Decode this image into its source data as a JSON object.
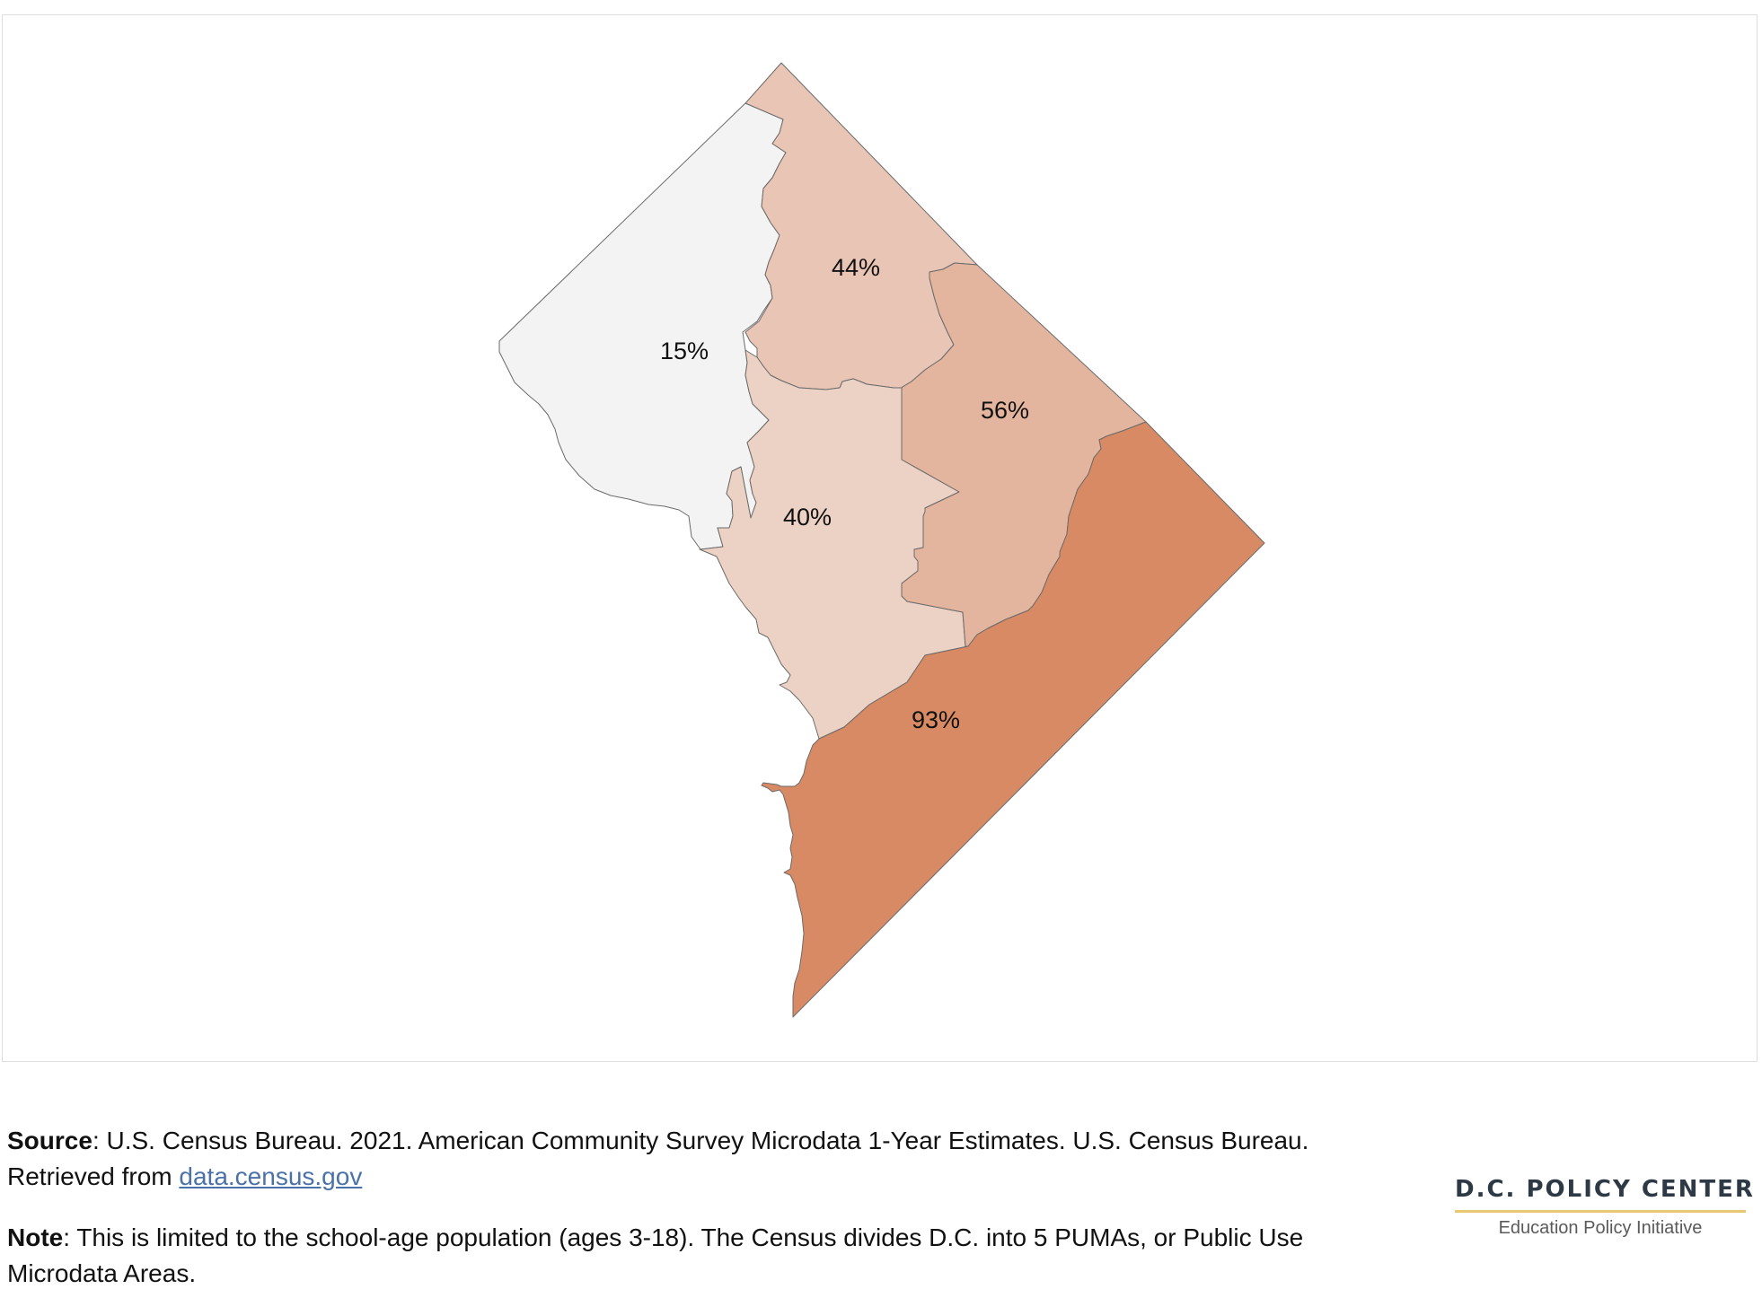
{
  "map": {
    "regions": [
      {
        "id": "puma-northwest",
        "label": "15%",
        "value": 15,
        "fill": "#f3f3f3"
      },
      {
        "id": "puma-north-central",
        "label": "44%",
        "value": 44,
        "fill": "#e8c5b5"
      },
      {
        "id": "puma-central",
        "label": "40%",
        "value": 40,
        "fill": "#ecd2c4"
      },
      {
        "id": "puma-northeast",
        "label": "56%",
        "value": 56,
        "fill": "#e4b59e"
      },
      {
        "id": "puma-east-of-river",
        "label": "93%",
        "value": 93,
        "fill": "#d78a63"
      }
    ],
    "border_color": "#6b6b6b"
  },
  "footer": {
    "source_key": "Source",
    "source_text": ": U.S. Census Bureau. 2021. American Community Survey Microdata 1-Year Estimates. U.S. Census Bureau. Retrieved from ",
    "source_link": "data.census.gov",
    "note_key": "Note",
    "note_text": ": This is limited to the school-age population (ages 3-18). The Census divides D.C. into 5 PUMAs, or Public Use Microdata Areas."
  },
  "logo": {
    "title": "D.C. POLICY CENTER",
    "subtitle": "Education Policy Initiative"
  }
}
